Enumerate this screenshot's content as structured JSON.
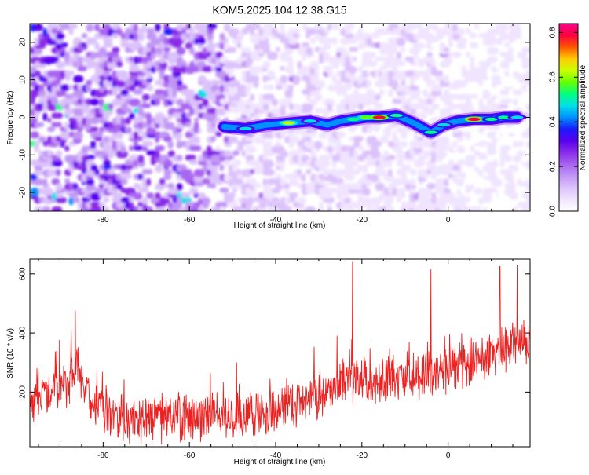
{
  "title": "KOM5.2025.104.12.38.G15",
  "chart_data": [
    {
      "type": "heatmap",
      "xlabel": "Height of straight line (km)",
      "ylabel": "Frequency (Hz)",
      "xlim": [
        -97,
        19
      ],
      "ylim": [
        -25,
        25
      ],
      "xticks": [
        -80,
        -60,
        -40,
        -20,
        0
      ],
      "yticks": [
        -20,
        -10,
        0,
        10,
        20
      ],
      "grid": false,
      "colorbar": {
        "label": "Normalized spectral amplitude",
        "range": [
          0,
          0.84
        ],
        "ticks": [
          0.0,
          0.2,
          0.4,
          0.6,
          0.8
        ],
        "colors": [
          "#ffffff",
          "#f0e4ff",
          "#dcc2fb",
          "#c197f5",
          "#a865f0",
          "#8a2ce8",
          "#5a00f0",
          "#1a1aff",
          "#0090ff",
          "#00e0e8",
          "#00ff80",
          "#66ff00",
          "#ccff00",
          "#ffcc00",
          "#ff5500",
          "#ff0040",
          "#ff0090"
        ]
      },
      "ridge": [
        {
          "x": -52,
          "y": -2.5,
          "amp": 0.3
        },
        {
          "x": -47,
          "y": -3.0,
          "amp": 0.45
        },
        {
          "x": -42,
          "y": -2.0,
          "amp": 0.4
        },
        {
          "x": -37,
          "y": -1.5,
          "amp": 0.65
        },
        {
          "x": -32,
          "y": -1.0,
          "amp": 0.45
        },
        {
          "x": -28,
          "y": -2.0,
          "amp": 0.35
        },
        {
          "x": -25,
          "y": -1.0,
          "amp": 0.3
        },
        {
          "x": -22,
          "y": -0.5,
          "amp": 0.55
        },
        {
          "x": -19,
          "y": 0.0,
          "amp": 0.6
        },
        {
          "x": -16,
          "y": 0.0,
          "amp": 0.78
        },
        {
          "x": -12,
          "y": 0.5,
          "amp": 0.5
        },
        {
          "x": -8,
          "y": -1.5,
          "amp": 0.4
        },
        {
          "x": -4,
          "y": -4.0,
          "amp": 0.5
        },
        {
          "x": -1,
          "y": -2.0,
          "amp": 0.45
        },
        {
          "x": 2,
          "y": -1.0,
          "amp": 0.4
        },
        {
          "x": 6,
          "y": -0.5,
          "amp": 0.8
        },
        {
          "x": 10,
          "y": -0.5,
          "amp": 0.5
        },
        {
          "x": 13,
          "y": 0.0,
          "amp": 0.5
        },
        {
          "x": 16,
          "y": 0.0,
          "amp": 0.45
        }
      ],
      "noise_level_by_x": [
        {
          "x": -97,
          "level": 0.28
        },
        {
          "x": -55,
          "level": 0.24
        },
        {
          "x": -50,
          "level": 0.12
        },
        {
          "x": -25,
          "level": 0.09
        },
        {
          "x": 19,
          "level": 0.05
        }
      ]
    },
    {
      "type": "line",
      "xlabel": "Height of straight line (km)",
      "ylabel": "SNR (10 * v/v)",
      "xlim": [
        -97,
        19
      ],
      "ylim": [
        15,
        650
      ],
      "xticks": [
        -80,
        -60,
        -40,
        -20,
        0
      ],
      "yticks": [
        200,
        400,
        600
      ],
      "grid": false,
      "color": "#ee2020",
      "mean_trend": [
        {
          "x": -97,
          "mean": 180
        },
        {
          "x": -90,
          "mean": 200
        },
        {
          "x": -86,
          "mean": 280
        },
        {
          "x": -83,
          "mean": 160
        },
        {
          "x": -75,
          "mean": 110
        },
        {
          "x": -55,
          "mean": 115
        },
        {
          "x": -40,
          "mean": 140
        },
        {
          "x": -30,
          "mean": 190
        },
        {
          "x": -20,
          "mean": 240
        },
        {
          "x": 0,
          "mean": 270
        },
        {
          "x": 19,
          "mean": 380
        }
      ],
      "spread": 75,
      "peaks": [
        {
          "x": -86.5,
          "y": 475
        },
        {
          "x": -22.2,
          "y": 640
        },
        {
          "x": -4,
          "y": 615
        },
        {
          "x": 12,
          "y": 625
        },
        {
          "x": 16,
          "y": 630
        }
      ]
    }
  ]
}
